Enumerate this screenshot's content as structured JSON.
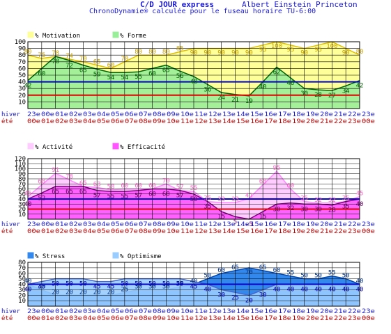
{
  "header": {
    "title": "C/D JOUR express",
    "person": "Albert Einstein Princeton",
    "subtitle": "ChronoDynamie® calculée pour le fuseau horaire TU-6:00"
  },
  "row_labels": {
    "hiver": "hiver",
    "ete": "été"
  },
  "hours_hiver": [
    "23",
    "00",
    "01",
    "02",
    "03",
    "04",
    "05",
    "06",
    "07",
    "08",
    "09",
    "10",
    "11",
    "12",
    "13",
    "14",
    "15",
    "16",
    "17",
    "18",
    "19",
    "20",
    "21",
    "22",
    "23"
  ],
  "hours_ete": [
    "00",
    "01",
    "02",
    "03",
    "04",
    "05",
    "06",
    "07",
    "08",
    "09",
    "10",
    "11",
    "12",
    "13",
    "14",
    "15",
    "16",
    "17",
    "18",
    "19",
    "20",
    "21",
    "22",
    "23",
    "00"
  ],
  "hour_suffix": "e",
  "colors": {
    "title": "#1a1ad8",
    "grid": "#000000",
    "hiver_text": "#1a1ad8",
    "ete_text": "#c80000",
    "blue_line": "#0000c8",
    "red_line": "#e00000"
  },
  "chart_data": [
    {
      "type": "area",
      "yticks": [
        10,
        20,
        30,
        40,
        50,
        60,
        70,
        80,
        90,
        100
      ],
      "ylim": [
        0,
        100
      ],
      "hlines": {
        "blue": 40,
        "red": 20
      },
      "x": [
        "23",
        "00",
        "01",
        "02",
        "03",
        "04",
        "05",
        "06",
        "07",
        "08",
        "09",
        "10",
        "11",
        "12",
        "13",
        "14",
        "15",
        "16",
        "17",
        "18",
        "19",
        "20",
        "21",
        "22",
        "23"
      ],
      "series": [
        {
          "name": "% Motivation",
          "fill": "#ffff99",
          "stroke": "#e0c000",
          "label_color": "#c8a000",
          "values": [
            80,
            75,
            78,
            74,
            70,
            65,
            60,
            70,
            80,
            80,
            80,
            85,
            90,
            90,
            90,
            90,
            90,
            95,
            100,
            95,
            90,
            95,
            100,
            90,
            80
          ]
        },
        {
          "name": "% Forme",
          "fill": "#99ee99",
          "stroke": "#006400",
          "label_color": "#006400",
          "values": [
            42,
            60,
            78,
            72,
            65,
            59,
            54,
            54,
            55,
            60,
            65,
            56,
            48,
            36,
            24,
            21,
            19,
            40,
            62,
            46,
            30,
            28,
            27,
            34,
            42
          ]
        }
      ]
    },
    {
      "type": "area",
      "yticks": [
        10,
        20,
        30,
        40,
        50,
        60,
        70,
        80,
        90,
        100,
        110,
        120
      ],
      "ylim": [
        0,
        120
      ],
      "hlines": {
        "blue": 40,
        "red": 20
      },
      "x": [
        "23",
        "00",
        "01",
        "02",
        "03",
        "04",
        "05",
        "06",
        "07",
        "08",
        "09",
        "10",
        "11",
        "12",
        "13",
        "14",
        "15",
        "16",
        "17",
        "18",
        "19",
        "20",
        "21",
        "22",
        "23"
      ],
      "series": [
        {
          "name": "% Activité",
          "fill": "#ffccff",
          "stroke": "#ff88ff",
          "label_color": "#ff66cc",
          "values": [
            45,
            68,
            91,
            78,
            65,
            63,
            58,
            60,
            60,
            60,
            70,
            57,
            55,
            35,
            33,
            33,
            41,
            68,
            95,
            60,
            35,
            32,
            32,
            35,
            45
          ]
        },
        {
          "name": "% Efficacité",
          "fill": "#ff55ff",
          "stroke": "#800080",
          "label_color": "#660066",
          "values": [
            40,
            52,
            65,
            65,
            65,
            57,
            55,
            55,
            57,
            60,
            60,
            57,
            50,
            35,
            15,
            5,
            -5,
            15,
            30,
            32,
            30,
            30,
            28,
            35,
            40
          ]
        }
      ]
    },
    {
      "type": "area",
      "yticks": [
        10,
        20,
        30,
        40,
        50,
        60,
        70,
        80
      ],
      "ylim": [
        0,
        80
      ],
      "hlines": {
        "blue": 40
      },
      "x": [
        "23",
        "00",
        "01",
        "02",
        "03",
        "04",
        "05",
        "06",
        "07",
        "08",
        "09",
        "10",
        "11",
        "12",
        "13",
        "14",
        "15",
        "16",
        "17",
        "18",
        "19",
        "20",
        "21",
        "22",
        "23"
      ],
      "series": [
        {
          "name": "% Stress",
          "fill": "#3388ee",
          "stroke": "#0044aa",
          "label_color": "#003388",
          "values": [
            40,
            30,
            20,
            20,
            20,
            20,
            20,
            25,
            30,
            30,
            30,
            35,
            40,
            50,
            60,
            65,
            70,
            65,
            60,
            55,
            50,
            50,
            55,
            50,
            40
          ]
        },
        {
          "name": "% Optimisme",
          "fill": "#99ccff",
          "stroke": "#4466cc",
          "label_color": "#0000aa",
          "values": [
            40,
            45,
            50,
            50,
            50,
            45,
            45,
            50,
            50,
            50,
            50,
            50,
            45,
            40,
            30,
            25,
            20,
            30,
            40,
            40,
            40,
            40,
            40,
            40,
            40
          ]
        }
      ]
    }
  ]
}
